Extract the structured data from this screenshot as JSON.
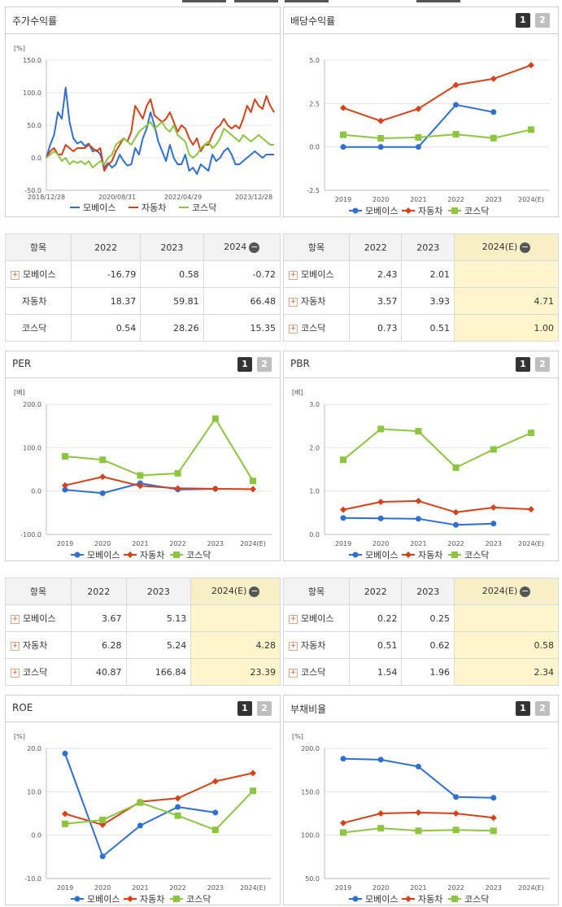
{
  "top_bar": {
    "segments": [
      "#555555",
      "#555555",
      "#555555",
      "#555555"
    ]
  },
  "tabs": {
    "one": "1",
    "two": "2"
  },
  "legend": [
    "모베이스",
    "자동차",
    "코스닥"
  ],
  "colors": {
    "mobase": "#2f6fd4",
    "auto": "#d94016",
    "kosdaq": "#8cc63f"
  },
  "panels": {
    "stock_return": {
      "title": "주가수익률"
    },
    "dividend": {
      "title": "배당수익률"
    },
    "per": {
      "title": "PER"
    },
    "pbr": {
      "title": "PBR"
    },
    "roe": {
      "title": "ROE"
    },
    "debt": {
      "title": "부채비율"
    }
  },
  "tables": {
    "stock_return": {
      "header": [
        "항목",
        "2022",
        "2023",
        "2024"
      ],
      "rows": [
        {
          "name": "모베이스",
          "values": [
            "-16.79",
            "0.58",
            "-0.72"
          ]
        },
        {
          "name": "자동차",
          "values": [
            "18.37",
            "59.81",
            "66.48"
          ]
        },
        {
          "name": "코스닥",
          "values": [
            "0.54",
            "28.26",
            "15.35"
          ]
        }
      ]
    },
    "dividend": {
      "header": [
        "항목",
        "2022",
        "2023",
        "2024(E)"
      ],
      "rows": [
        {
          "name": "모베이스",
          "values": [
            "2.43",
            "2.01",
            ""
          ]
        },
        {
          "name": "자동차",
          "values": [
            "3.57",
            "3.93",
            "4.71"
          ]
        },
        {
          "name": "코스닥",
          "values": [
            "0.73",
            "0.51",
            "1.00"
          ]
        }
      ]
    },
    "per": {
      "header": [
        "항목",
        "2022",
        "2023",
        "2024(E)"
      ],
      "rows": [
        {
          "name": "모베이스",
          "values": [
            "3.67",
            "5.13",
            ""
          ]
        },
        {
          "name": "자동차",
          "values": [
            "6.28",
            "5.24",
            "4.28"
          ]
        },
        {
          "name": "코스닥",
          "values": [
            "40.87",
            "166.84",
            "23.39"
          ]
        }
      ]
    },
    "pbr": {
      "header": [
        "항목",
        "2022",
        "2023",
        "2024(E)"
      ],
      "rows": [
        {
          "name": "모베이스",
          "values": [
            "0.22",
            "0.25",
            ""
          ]
        },
        {
          "name": "자동차",
          "values": [
            "0.51",
            "0.62",
            "0.58"
          ]
        },
        {
          "name": "코스닥",
          "values": [
            "1.54",
            "1.96",
            "2.34"
          ]
        }
      ]
    }
  },
  "chart_data": [
    {
      "id": "stock_return",
      "type": "line",
      "title": "주가수익률",
      "unit": "[%]",
      "ylim": [
        -50,
        150
      ],
      "yticks": [
        "150.0",
        "100.0",
        "50.0",
        "0.0",
        "-50.0"
      ],
      "x_labels": [
        "2018/12/28",
        "2020/08/31",
        "2022/04/29",
        "2023/12/28"
      ],
      "series": [
        {
          "name": "모베이스",
          "values": [
            0,
            20,
            35,
            70,
            60,
            108,
            55,
            30,
            22,
            25,
            18,
            22,
            10,
            12,
            5,
            -15,
            -8,
            -15,
            -10,
            5,
            -5,
            -12,
            -10,
            15,
            5,
            30,
            45,
            70,
            50,
            25,
            10,
            -5,
            20,
            0,
            -10,
            -10,
            5,
            -20,
            -15,
            -25,
            -10,
            -15,
            -20,
            5,
            -5,
            0,
            10,
            15,
            5,
            -10,
            -10,
            -5,
            0,
            5,
            10,
            5,
            0,
            5,
            5,
            5
          ]
        },
        {
          "name": "자동차",
          "values": [
            0,
            10,
            15,
            5,
            5,
            20,
            15,
            10,
            15,
            15,
            15,
            20,
            15,
            10,
            15,
            -20,
            -10,
            -5,
            10,
            20,
            30,
            25,
            40,
            80,
            70,
            60,
            80,
            90,
            65,
            60,
            55,
            60,
            70,
            55,
            40,
            50,
            45,
            30,
            20,
            30,
            10,
            20,
            20,
            35,
            45,
            50,
            60,
            50,
            45,
            50,
            45,
            60,
            80,
            70,
            90,
            80,
            75,
            95,
            80,
            70
          ]
        },
        {
          "name": "코스닥",
          "values": [
            0,
            5,
            10,
            5,
            -5,
            0,
            -10,
            -5,
            -8,
            -5,
            -10,
            -5,
            -15,
            -10,
            -5,
            -10,
            0,
            5,
            20,
            25,
            30,
            25,
            20,
            30,
            40,
            45,
            50,
            55,
            45,
            50,
            55,
            45,
            40,
            50,
            35,
            30,
            25,
            5,
            0,
            5,
            15,
            20,
            25,
            15,
            20,
            30,
            45,
            40,
            35,
            30,
            25,
            35,
            30,
            25,
            30,
            35,
            30,
            25,
            20,
            20
          ]
        }
      ]
    },
    {
      "id": "dividend",
      "type": "line",
      "title": "배당수익률",
      "ylim": [
        -2.5,
        5.0
      ],
      "yticks": [
        "5.0",
        "2.5",
        "0.0",
        "-2.5"
      ],
      "x": [
        "2019",
        "2020",
        "2021",
        "2022",
        "2023",
        "2024(E)"
      ],
      "series": [
        {
          "name": "모베이스",
          "values": [
            0.0,
            0.0,
            0.0,
            2.43,
            2.01,
            null
          ]
        },
        {
          "name": "자동차",
          "values": [
            2.25,
            1.5,
            2.2,
            3.57,
            3.93,
            4.71
          ]
        },
        {
          "name": "코스닥",
          "values": [
            0.7,
            0.5,
            0.55,
            0.73,
            0.51,
            1.0
          ]
        }
      ]
    },
    {
      "id": "per",
      "type": "line",
      "title": "PER",
      "unit": "[배]",
      "ylim": [
        -100,
        200
      ],
      "yticks": [
        "200.0",
        "100.0",
        "0.0",
        "-100.0"
      ],
      "x": [
        "2019",
        "2020",
        "2021",
        "2022",
        "2023",
        "2024(E)"
      ],
      "series": [
        {
          "name": "모베이스",
          "values": [
            3,
            -5,
            18,
            3.67,
            5.13,
            null
          ]
        },
        {
          "name": "자동차",
          "values": [
            13,
            33,
            12,
            6.28,
            5.24,
            4.28
          ]
        },
        {
          "name": "코스닥",
          "values": [
            80,
            72,
            36,
            40.87,
            166.84,
            23.39
          ]
        }
      ]
    },
    {
      "id": "pbr",
      "type": "line",
      "title": "PBR",
      "unit": "[배]",
      "ylim": [
        0,
        3
      ],
      "yticks": [
        "3.0",
        "2.0",
        "1.0",
        "0.0"
      ],
      "x": [
        "2019",
        "2020",
        "2021",
        "2022",
        "2023",
        "2024(E)"
      ],
      "series": [
        {
          "name": "모베이스",
          "values": [
            0.38,
            0.37,
            0.36,
            0.22,
            0.25,
            null
          ]
        },
        {
          "name": "자동차",
          "values": [
            0.57,
            0.75,
            0.77,
            0.51,
            0.62,
            0.58
          ]
        },
        {
          "name": "코스닥",
          "values": [
            1.72,
            2.43,
            2.38,
            1.54,
            1.96,
            2.34
          ]
        }
      ]
    },
    {
      "id": "roe",
      "type": "line",
      "title": "ROE",
      "unit": "[%]",
      "ylim": [
        -10,
        20
      ],
      "yticks": [
        "20.0",
        "10.0",
        "0.0",
        "-10.0"
      ],
      "x": [
        "2019",
        "2020",
        "2021",
        "2022",
        "2023",
        "2024(E)"
      ],
      "series": [
        {
          "name": "모베이스",
          "values": [
            18.8,
            -4.9,
            2.2,
            6.5,
            5.2,
            null
          ]
        },
        {
          "name": "자동차",
          "values": [
            4.9,
            2.4,
            7.7,
            8.5,
            12.4,
            14.3
          ]
        },
        {
          "name": "코스닥",
          "values": [
            2.6,
            3.5,
            7.5,
            4.5,
            1.2,
            10.2
          ]
        }
      ]
    },
    {
      "id": "debt",
      "type": "line",
      "title": "부채비율",
      "unit": "[%]",
      "ylim": [
        50,
        200
      ],
      "yticks": [
        "200.0",
        "150.0",
        "100.0",
        "50.0"
      ],
      "x": [
        "2019",
        "2020",
        "2021",
        "2022",
        "2023",
        "2024(E)"
      ],
      "series": [
        {
          "name": "모베이스",
          "values": [
            188,
            187,
            179,
            144,
            143,
            null
          ]
        },
        {
          "name": "자동차",
          "values": [
            114,
            125,
            126,
            125,
            120,
            null
          ]
        },
        {
          "name": "코스닥",
          "values": [
            103,
            108,
            105,
            106,
            105,
            null
          ]
        }
      ]
    }
  ]
}
